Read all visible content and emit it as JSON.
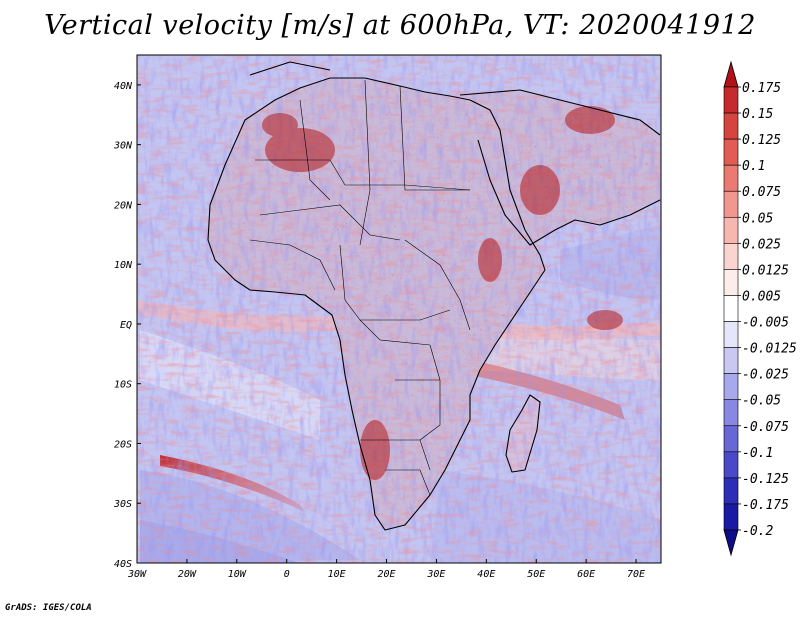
{
  "title": "Vertical velocity [m/s] at 600hPa, VT: 2020041912",
  "credit": "GrADS: IGES/COLA",
  "chart_data": {
    "type": "heatmap",
    "variable": "Vertical velocity",
    "units": "m/s",
    "level": "600hPa",
    "valid_time": "2020041912",
    "lon_range": [
      -30,
      75
    ],
    "lat_range": [
      -40,
      45
    ],
    "x_ticks": [
      {
        "value": -30,
        "label": "30W"
      },
      {
        "value": -20,
        "label": "20W"
      },
      {
        "value": -10,
        "label": "10W"
      },
      {
        "value": 0,
        "label": "0"
      },
      {
        "value": 10,
        "label": "10E"
      },
      {
        "value": 20,
        "label": "20E"
      },
      {
        "value": 30,
        "label": "30E"
      },
      {
        "value": 40,
        "label": "40E"
      },
      {
        "value": 50,
        "label": "50E"
      },
      {
        "value": 60,
        "label": "60E"
      },
      {
        "value": 70,
        "label": "70E"
      }
    ],
    "y_ticks": [
      {
        "value": 40,
        "label": "40N"
      },
      {
        "value": 30,
        "label": "30N"
      },
      {
        "value": 20,
        "label": "20N"
      },
      {
        "value": 10,
        "label": "10N"
      },
      {
        "value": 0,
        "label": "EQ"
      },
      {
        "value": -10,
        "label": "10S"
      },
      {
        "value": -20,
        "label": "20S"
      },
      {
        "value": -30,
        "label": "30S"
      },
      {
        "value": -40,
        "label": "40S"
      }
    ],
    "colorbar": {
      "labels": [
        "0.175",
        "0.15",
        "0.125",
        "0.1",
        "0.075",
        "0.05",
        "0.025",
        "0.0125",
        "0.005",
        "-0.005",
        "-0.0125",
        "-0.025",
        "-0.05",
        "-0.075",
        "-0.1",
        "-0.125",
        "-0.175",
        "-0.2"
      ],
      "colors": [
        "#b11217",
        "#c52a2e",
        "#d6443f",
        "#e25c55",
        "#eb7a72",
        "#f2978f",
        "#f7b6af",
        "#fbd3cf",
        "#fdecea",
        "#ffffff",
        "#e6e6fb",
        "#c8c8f3",
        "#a8a8ec",
        "#8888e2",
        "#6767d6",
        "#4a4ac8",
        "#2d2db8",
        "#1a1aa4",
        "#0d0d8a"
      ]
    },
    "colors": {
      "ocean_base": "#c9cbf4",
      "land_base": "#d4c3dc",
      "positive": "#d84848",
      "negative": "#5a5ad8",
      "border": "#000000"
    }
  }
}
